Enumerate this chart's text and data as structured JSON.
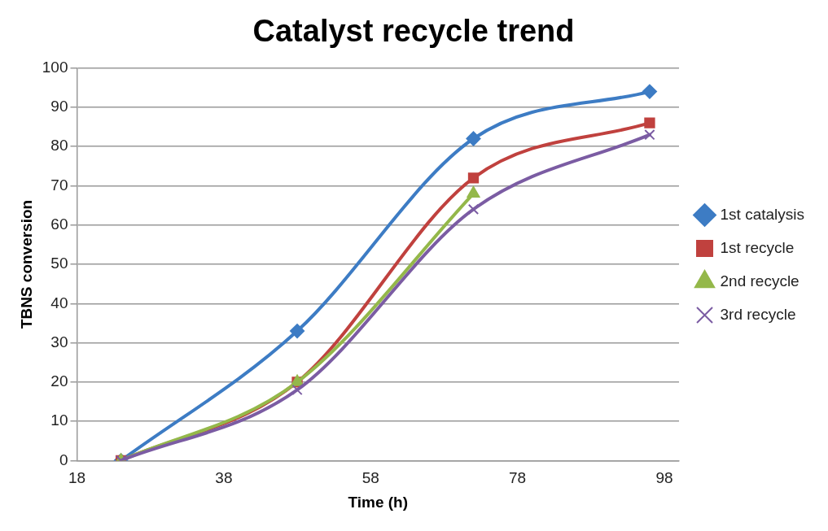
{
  "chart_data": {
    "type": "line",
    "title": "Catalyst recycle trend",
    "xlabel": "Time (h)",
    "ylabel": "TBNS conversion",
    "x": [
      24,
      48,
      72,
      96
    ],
    "series": [
      {
        "name": "1st catalysis",
        "color": "#3d7cc4",
        "values": [
          0,
          33,
          82,
          94
        ],
        "marker": "diamond"
      },
      {
        "name": "1st recycle",
        "color": "#c0413e",
        "values": [
          0,
          20,
          72,
          86
        ],
        "marker": "square"
      },
      {
        "name": "2nd recycle",
        "color": "#94b84a",
        "values": [
          0,
          20,
          68,
          null
        ],
        "marker": "triangle"
      },
      {
        "name": "3rd recycle",
        "color": "#7b5ca3",
        "values": [
          0,
          18,
          64,
          83
        ],
        "marker": "cross"
      }
    ],
    "xlim": [
      18,
      100
    ],
    "xticks": [
      18,
      38,
      58,
      78,
      98
    ],
    "ylim": [
      0,
      100
    ],
    "yticks": [
      0,
      10,
      20,
      30,
      40,
      50,
      60,
      70,
      80,
      90,
      100
    ],
    "grid": "y",
    "legend": "right"
  }
}
